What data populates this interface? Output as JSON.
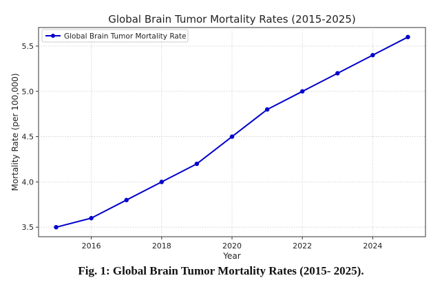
{
  "figure": {
    "caption": "Fig. 1: Global Brain Tumor Mortality Rates (2015- 2025)."
  },
  "chart_data": {
    "type": "line",
    "title": "Global Brain Tumor Mortality Rates (2015-2025)",
    "xlabel": "Year",
    "ylabel": "Mortality Rate (per 100,000)",
    "x": [
      2015,
      2016,
      2017,
      2018,
      2019,
      2020,
      2021,
      2022,
      2023,
      2024,
      2025
    ],
    "series": [
      {
        "name": "Global Brain Tumor Mortality Rate",
        "values": [
          3.5,
          3.6,
          3.8,
          4.0,
          4.2,
          4.5,
          4.8,
          5.0,
          5.2,
          5.4,
          5.6
        ],
        "color": "#0000cc",
        "marker": "circle"
      }
    ],
    "xticks": [
      "2016",
      "2018",
      "2020",
      "2022",
      "2024"
    ],
    "yticks": [
      "3.5",
      "4.0",
      "4.5",
      "5.0",
      "5.5"
    ],
    "xlim": [
      2014.5,
      2025.5
    ],
    "ylim": [
      3.395,
      5.705
    ],
    "grid": true,
    "grid_style": "dotted",
    "legend_position": "top-left"
  }
}
